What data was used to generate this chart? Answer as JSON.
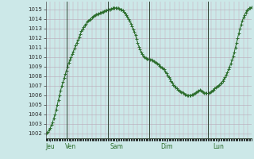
{
  "bg_color": "#cce8e8",
  "line_color": "#2d6e2d",
  "marker_color": "#2d6e2d",
  "grid_v_color": "#c8a0b0",
  "grid_h_color": "#b0ccc8",
  "separator_color": "#445544",
  "ylim": [
    1001.5,
    1015.8
  ],
  "yticks": [
    1002,
    1003,
    1004,
    1005,
    1006,
    1007,
    1008,
    1009,
    1010,
    1011,
    1012,
    1013,
    1014,
    1015
  ],
  "day_labels": [
    "Jeu",
    "Ven",
    "Sam",
    "Dim",
    "Lun"
  ],
  "x_data": [
    0,
    1,
    2,
    3,
    4,
    5,
    6,
    7,
    8,
    9,
    10,
    11,
    12,
    13,
    14,
    15,
    16,
    17,
    18,
    19,
    20,
    21,
    22,
    23,
    24,
    25,
    26,
    27,
    28,
    29,
    30,
    31,
    32,
    33,
    34,
    35,
    36,
    37,
    38,
    39,
    40,
    41,
    42,
    43,
    44,
    45,
    46,
    47,
    48,
    49,
    50,
    51,
    52,
    53,
    54,
    55,
    56,
    57,
    58,
    59,
    60,
    61,
    62,
    63,
    64,
    65,
    66,
    67,
    68,
    69,
    70,
    71,
    72,
    73,
    74,
    75,
    76,
    77,
    78,
    79,
    80,
    81,
    82,
    83,
    84,
    85,
    86,
    87,
    88,
    89,
    90,
    91,
    92,
    93,
    94,
    95,
    96,
    97,
    98,
    99,
    100,
    101,
    102,
    103,
    104,
    105,
    106,
    107,
    108,
    109,
    110,
    111,
    112,
    113,
    114,
    115,
    116,
    117,
    118,
    119,
    120,
    121,
    122,
    123,
    124,
    125,
    126,
    127,
    128,
    129,
    130,
    131,
    132,
    133,
    134,
    135,
    136,
    137,
    138,
    139,
    140,
    141,
    142,
    143,
    144,
    145,
    146,
    147,
    148,
    149,
    150,
    151,
    152,
    153,
    154,
    155,
    156,
    157,
    158,
    159,
    160,
    161,
    162,
    163,
    164,
    165,
    166,
    167,
    168,
    169,
    170,
    171,
    172,
    173,
    174,
    175,
    176,
    177,
    178,
    179,
    180,
    181,
    182,
    183,
    184,
    185,
    186,
    187,
    188,
    189,
    190,
    191,
    192,
    193,
    194,
    195
  ],
  "y_data": [
    1002.0,
    1002.1,
    1002.2,
    1002.4,
    1002.6,
    1002.9,
    1003.2,
    1003.6,
    1004.0,
    1004.5,
    1005.0,
    1005.5,
    1006.0,
    1006.5,
    1007.0,
    1007.4,
    1007.8,
    1008.2,
    1008.6,
    1009.0,
    1009.4,
    1009.7,
    1010.0,
    1010.3,
    1010.6,
    1010.9,
    1011.2,
    1011.5,
    1011.8,
    1012.1,
    1012.4,
    1012.7,
    1012.9,
    1013.1,
    1013.3,
    1013.5,
    1013.7,
    1013.8,
    1013.9,
    1014.0,
    1014.1,
    1014.2,
    1014.3,
    1014.4,
    1014.45,
    1014.5,
    1014.55,
    1014.6,
    1014.65,
    1014.7,
    1014.75,
    1014.8,
    1014.85,
    1014.9,
    1014.95,
    1015.0,
    1015.0,
    1015.05,
    1015.1,
    1015.1,
    1015.15,
    1015.15,
    1015.15,
    1015.1,
    1015.05,
    1015.0,
    1014.95,
    1014.85,
    1014.7,
    1014.55,
    1014.4,
    1014.2,
    1014.0,
    1013.8,
    1013.5,
    1013.2,
    1012.9,
    1012.6,
    1012.3,
    1011.9,
    1011.5,
    1011.1,
    1010.8,
    1010.5,
    1010.3,
    1010.1,
    1010.0,
    1009.9,
    1009.8,
    1009.8,
    1009.8,
    1009.75,
    1009.7,
    1009.65,
    1009.6,
    1009.5,
    1009.4,
    1009.3,
    1009.2,
    1009.1,
    1009.0,
    1008.9,
    1008.8,
    1008.7,
    1008.5,
    1008.3,
    1008.1,
    1007.9,
    1007.7,
    1007.5,
    1007.3,
    1007.1,
    1007.0,
    1006.8,
    1006.7,
    1006.6,
    1006.5,
    1006.4,
    1006.35,
    1006.3,
    1006.2,
    1006.1,
    1006.1,
    1006.0,
    1006.0,
    1006.0,
    1006.0,
    1006.05,
    1006.1,
    1006.15,
    1006.2,
    1006.3,
    1006.4,
    1006.5,
    1006.55,
    1006.5,
    1006.4,
    1006.3,
    1006.25,
    1006.2,
    1006.2,
    1006.2,
    1006.25,
    1006.3,
    1006.4,
    1006.5,
    1006.6,
    1006.7,
    1006.8,
    1006.9,
    1007.0,
    1007.1,
    1007.2,
    1007.35,
    1007.5,
    1007.7,
    1007.9,
    1008.15,
    1008.4,
    1008.7,
    1009.0,
    1009.3,
    1009.7,
    1010.1,
    1010.5,
    1011.0,
    1011.5,
    1012.0,
    1012.5,
    1013.0,
    1013.4,
    1013.8,
    1014.1,
    1014.4,
    1014.65,
    1014.85,
    1015.0,
    1015.1,
    1015.15,
    1015.2
  ]
}
